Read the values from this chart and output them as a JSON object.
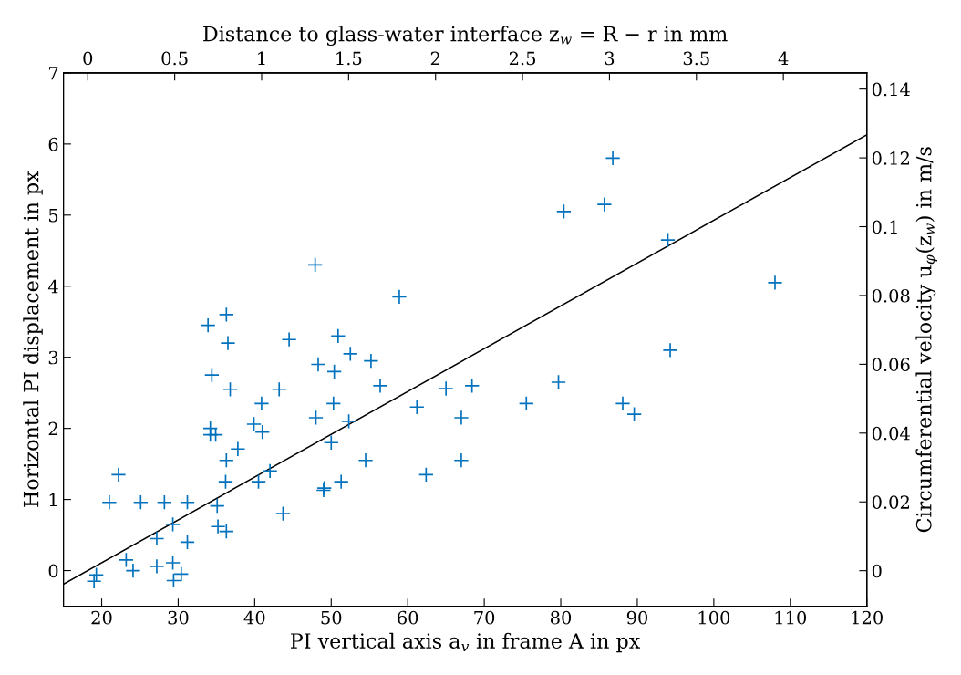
{
  "chart_data": {
    "type": "scatter",
    "xlabel": "PI vertical axis a$_{v}$ in frame A in px",
    "ylabel": "Horizontal PI displacement in px",
    "y2label": "Circumferential velocity u$_{φ}$(z$_{w}$) in m/s",
    "x2label": "Distance to glass-water interface z$_{w}$ = R − r in mm",
    "xlim": [
      15,
      120
    ],
    "xticks": [
      20,
      30,
      40,
      50,
      60,
      70,
      80,
      90,
      100,
      110,
      120
    ],
    "ylim": [
      -0.5,
      7
    ],
    "yticks": [
      0,
      1,
      2,
      3,
      4,
      5,
      6,
      7
    ],
    "x2lim": [
      -0.14,
      4.48
    ],
    "x2ticks": [
      0,
      0.5,
      1,
      1.5,
      2,
      2.5,
      3,
      3.5,
      4
    ],
    "y2lim": [
      -0.0103,
      0.1447
    ],
    "y2ticks": [
      0,
      0.02,
      0.04,
      0.06,
      0.08,
      0.1,
      0.12,
      0.14
    ],
    "grid": false,
    "legend": false,
    "marker": "cross",
    "series": [
      {
        "color": "#0072bd",
        "x": [
          36.3,
          33.9,
          36.5,
          34.4,
          36.8,
          44.5,
          43.2,
          40.9,
          34.2,
          34.2,
          34.9,
          39.9,
          41.0,
          37.8,
          36.3,
          36.2,
          40.5,
          42.0,
          22.2,
          21.0,
          25.1,
          28.2,
          31.2,
          35.1,
          43.7,
          29.3,
          35.2,
          36.3,
          27.2,
          31.2,
          23.2,
          24.1,
          27.2,
          29.3,
          30.4,
          29.4,
          19.3,
          19.0,
          47.9,
          58.9,
          50.9,
          52.5,
          48.3,
          50.4,
          55.2,
          56.4,
          50.3,
          48.0,
          52.3,
          61.2,
          65.0,
          68.4,
          67.0,
          50.0,
          54.5,
          67.0,
          62.4,
          51.3,
          49.0,
          49.1,
          86.8,
          80.4,
          85.7,
          94.0,
          108.0,
          94.3,
          79.7,
          75.5,
          88.1,
          89.6
        ],
        "values": [
          3.6,
          3.45,
          3.2,
          2.75,
          2.55,
          3.25,
          2.55,
          2.35,
          2.0,
          1.91,
          1.91,
          2.06,
          1.95,
          1.71,
          1.55,
          1.25,
          1.25,
          1.4,
          1.35,
          0.96,
          0.96,
          0.96,
          0.96,
          0.91,
          0.8,
          0.65,
          0.62,
          0.55,
          0.45,
          0.4,
          0.15,
          0.0,
          0.06,
          0.11,
          -0.05,
          -0.14,
          -0.06,
          -0.15,
          4.3,
          3.85,
          3.3,
          3.05,
          2.9,
          2.8,
          2.95,
          2.6,
          2.35,
          2.15,
          2.1,
          2.3,
          2.56,
          2.6,
          2.15,
          1.8,
          1.55,
          1.55,
          1.35,
          1.25,
          1.13,
          1.16,
          5.8,
          5.05,
          5.15,
          4.65,
          4.05,
          3.1,
          2.65,
          2.35,
          2.35,
          2.2
        ]
      },
      {
        "type": "line",
        "color": "#000000",
        "marker": "none",
        "x": [
          15,
          120
        ],
        "values": [
          -0.19,
          6.13
        ]
      }
    ]
  }
}
